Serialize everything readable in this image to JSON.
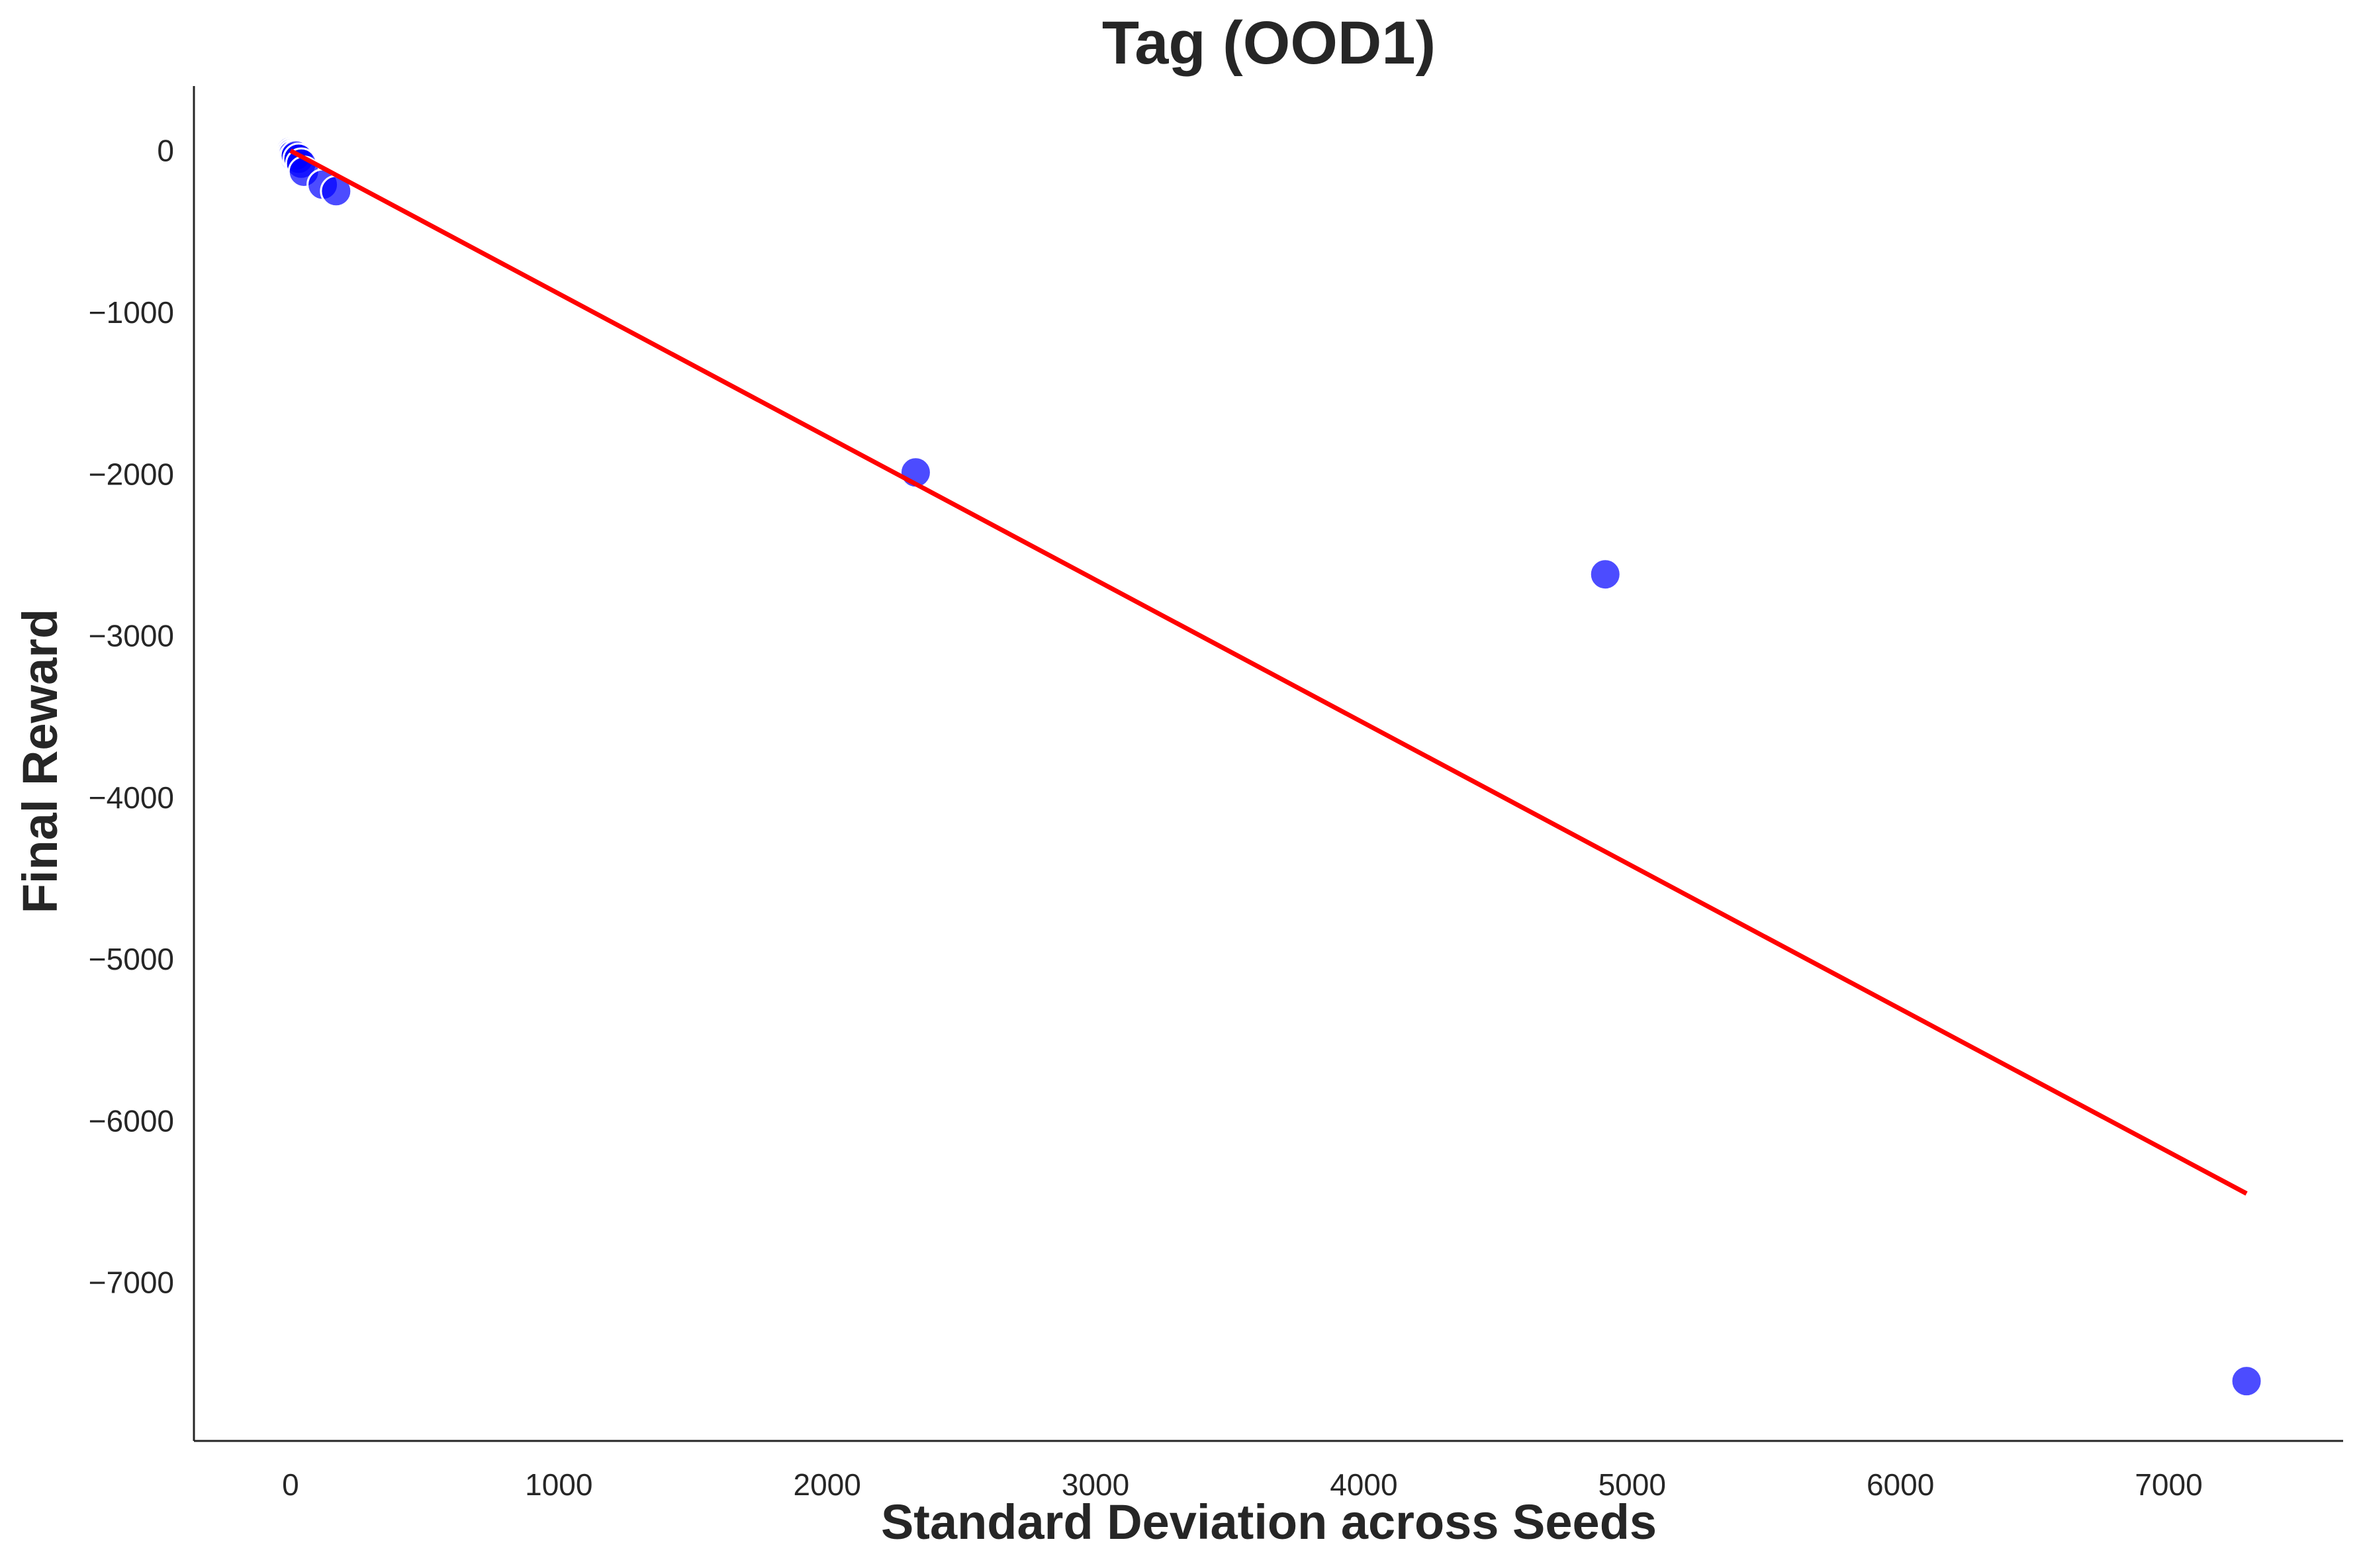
{
  "chart_data": {
    "type": "scatter",
    "title": "Tag (OOD1)",
    "xlabel": "Standard Deviation across Seeds",
    "ylabel": "Final Reward",
    "xlim": [
      -360,
      7650
    ],
    "ylim": [
      -7980,
      400
    ],
    "xticks": [
      0,
      1000,
      2000,
      3000,
      4000,
      5000,
      6000,
      7000
    ],
    "yticks": [
      0,
      -1000,
      -2000,
      -3000,
      -4000,
      -5000,
      -6000,
      -7000
    ],
    "xtick_labels": [
      "0",
      "1000",
      "2000",
      "3000",
      "4000",
      "5000",
      "6000",
      "7000"
    ],
    "ytick_labels": [
      "0",
      "−1000",
      "−2000",
      "−3000",
      "−4000",
      "−5000",
      "−6000",
      "−7000"
    ],
    "grid": false,
    "points": {
      "x": [
        0,
        5,
        10,
        15,
        20,
        30,
        40,
        50,
        120,
        170,
        2330,
        4900,
        7290
      ],
      "y": [
        -5,
        -15,
        -25,
        -40,
        -30,
        -50,
        -80,
        -130,
        -210,
        -250,
        -1990,
        -2620,
        -7610
      ],
      "color": "#0000ff"
    },
    "fit_line": {
      "x": [
        0,
        7290
      ],
      "y": [
        0,
        -6450
      ],
      "color": "#ff0000"
    }
  }
}
